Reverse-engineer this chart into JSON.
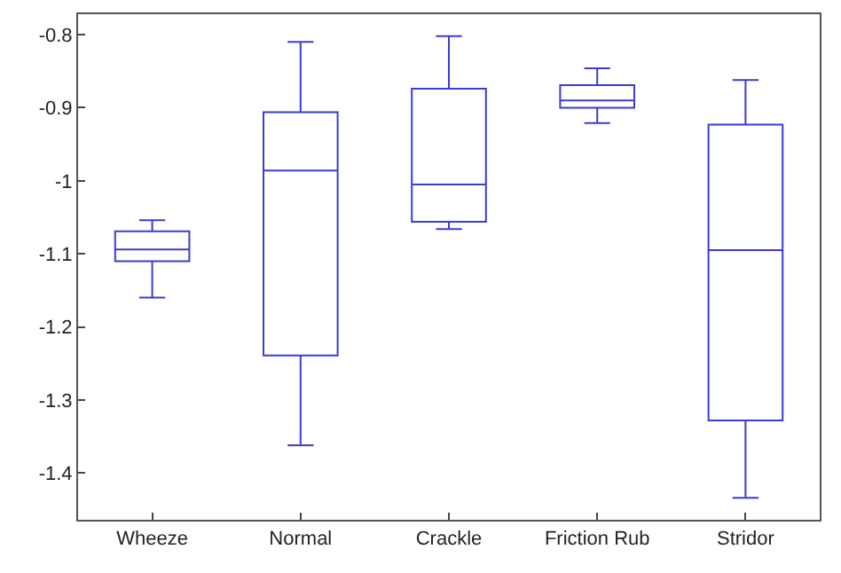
{
  "chart_data": {
    "type": "box",
    "categories": [
      "Wheeze",
      "Normal",
      "Crackle",
      "Friction Rub",
      "Stridor"
    ],
    "series": [
      {
        "color": "#3b3bd6",
        "boxes": [
          {
            "low": -1.16,
            "q1": -1.11,
            "median": -1.094,
            "q3": -1.069,
            "high": -1.054
          },
          {
            "low": -1.362,
            "q1": -1.239,
            "median": -0.986,
            "q3": -0.906,
            "high": -0.81
          },
          {
            "low": -1.066,
            "q1": -1.056,
            "median": -1.005,
            "q3": -0.874,
            "high": -0.802
          },
          {
            "low": -0.921,
            "q1": -0.9,
            "median": -0.89,
            "q3": -0.869,
            "high": -0.846
          },
          {
            "low": -1.434,
            "q1": -1.328,
            "median": -1.095,
            "q3": -0.923,
            "high": -0.862
          }
        ]
      }
    ],
    "ylim": [
      -1.464,
      -0.772
    ],
    "yticks": [
      -0.8,
      -0.9,
      -1,
      -1.1,
      -1.2,
      -1.3,
      -1.4
    ],
    "grid": false
  }
}
